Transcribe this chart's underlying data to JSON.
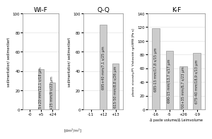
{
  "panels": [
    {
      "title": "WI-F",
      "xtick_labels": [
        "-0",
        "+5",
        "+24"
      ],
      "xtick_positions": [
        0,
        1,
        2
      ],
      "bar_positions": [
        1,
        2
      ],
      "bar_values": [
        42,
        28
      ],
      "bar_labels": [
        "655+20 mm/12,1 s/18 µm",
        "655+25 mm/9 s/22 µm"
      ],
      "ylim": [
        0,
        100
      ],
      "yticks": [
        0,
        20,
        40,
        60,
        80,
        100
      ],
      "has_left_rotlabel": true,
      "left_rotlabel": "sedimentation/ sedimentiert"
    },
    {
      "title": "Q-Q",
      "xtick_labels": [
        "-11",
        "+12",
        "+13"
      ],
      "xtick_positions": [
        0,
        1,
        2
      ],
      "bar_positions": [
        1,
        2
      ],
      "bar_values": [
        88,
        48
      ],
      "bar_labels": [
        "695+40 mm/7,1 s/25 µm",
        "615-50 mm/8,8 s/26 µm"
      ],
      "ylim": [
        0,
        100
      ],
      "yticks": [
        0,
        20,
        40,
        60,
        80,
        100
      ],
      "has_left_rotlabel": true,
      "left_rotlabel": "sedimentation/ sedimentiert"
    },
    {
      "title": "K-F",
      "xtick_labels": [
        "-16",
        "-5",
        "+26",
        "-19"
      ],
      "xtick_positions": [
        0,
        1,
        2,
        3
      ],
      "bar_positions": [
        0,
        1,
        2,
        3
      ],
      "bar_values": [
        118,
        85,
        63,
        82
      ],
      "bar_labels": [
        "685-15 mm/17,8 s/15 µm",
        "690-15 mm/13,7 s/17 µm",
        "700+35 mm/8,7 s/23 µm",
        "675-40 mm/18,9 s/13 µm"
      ],
      "ylim": [
        0,
        140
      ],
      "yticks": [
        0,
        20,
        40,
        60,
        80,
        100,
        120,
        140
      ],
      "ylabel": "plastic viscosity/Pl. Viskosität ηpl,BRB [Pa·s]",
      "xlabel": "Δ paste volume/Δ Leimvolume",
      "has_left_rotlabel": false
    }
  ],
  "bar_color": "#cccccc",
  "bar_edge_color": "#999999",
  "background_color": "#ffffff",
  "grid_color": "#dddddd",
  "bar_width": 0.55,
  "font_size": 4.5,
  "label_font_size": 3.5,
  "title_font_size": 6.5,
  "shared_xlabel": "[dm²/m²]",
  "shared_ylabel": "sedimentation/ sedimentiert"
}
